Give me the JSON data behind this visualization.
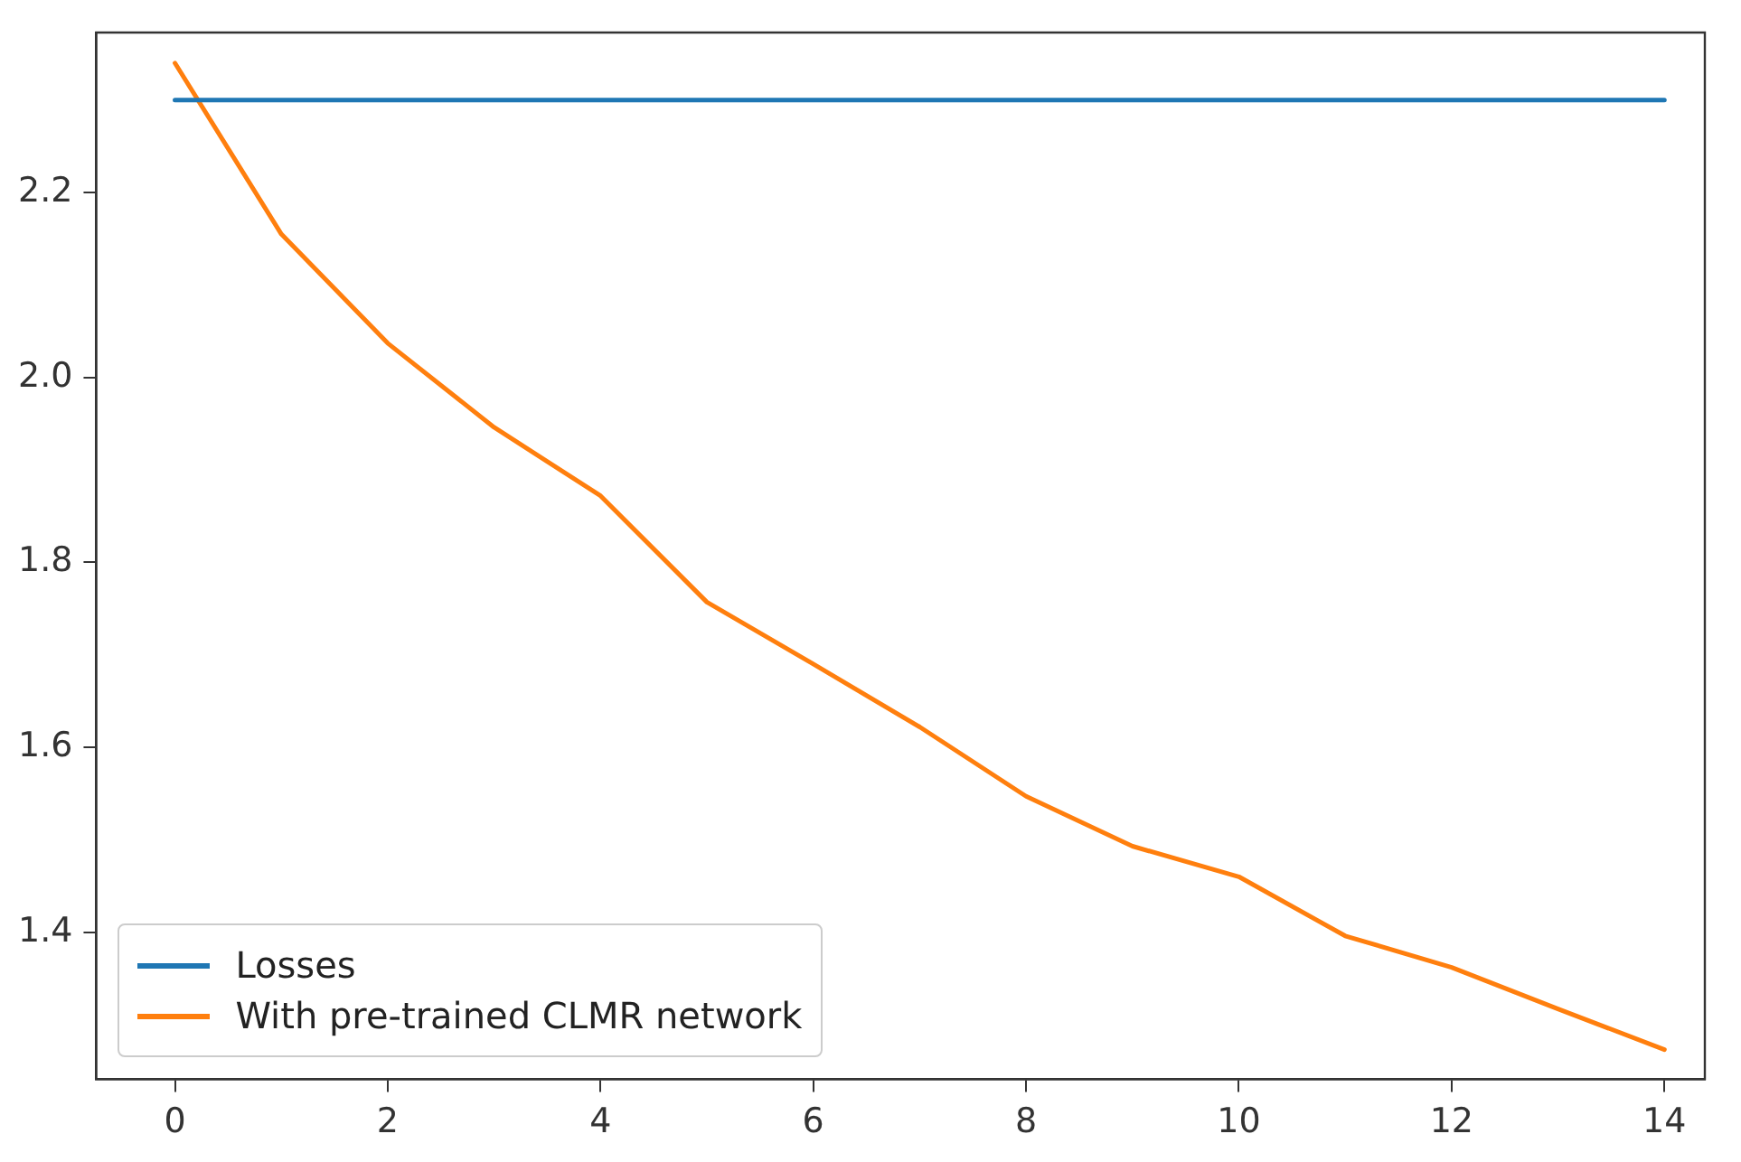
{
  "chart_data": {
    "type": "line",
    "x": [
      0,
      1,
      2,
      3,
      4,
      5,
      6,
      7,
      8,
      9,
      10,
      11,
      12,
      13,
      14
    ],
    "series": [
      {
        "name": "Losses",
        "color": "#1f77b4",
        "values": [
          2.3,
          2.3,
          2.3,
          2.3,
          2.3,
          2.3,
          2.3,
          2.3,
          2.3,
          2.3,
          2.3,
          2.3,
          2.3,
          2.3,
          2.3
        ]
      },
      {
        "name": "With pre-trained CLMR network",
        "color": "#ff7f0e",
        "values": [
          2.34,
          2.155,
          2.037,
          1.946,
          1.872,
          1.757,
          1.69,
          1.622,
          1.547,
          1.493,
          1.46,
          1.396,
          1.362,
          1.317,
          1.273
        ]
      }
    ],
    "xlim": [
      -0.74,
      14.38
    ],
    "xticks": [
      0,
      2,
      4,
      6,
      8,
      10,
      12,
      14
    ],
    "ylim": [
      1.241,
      2.373
    ],
    "yticks": [
      1.4,
      1.6,
      1.8,
      {
        "value": 2,
        "label": "2.0"
      },
      2.2
    ],
    "grid": false,
    "legend": "bottom left",
    "marker": "none",
    "line_style": "solid"
  }
}
